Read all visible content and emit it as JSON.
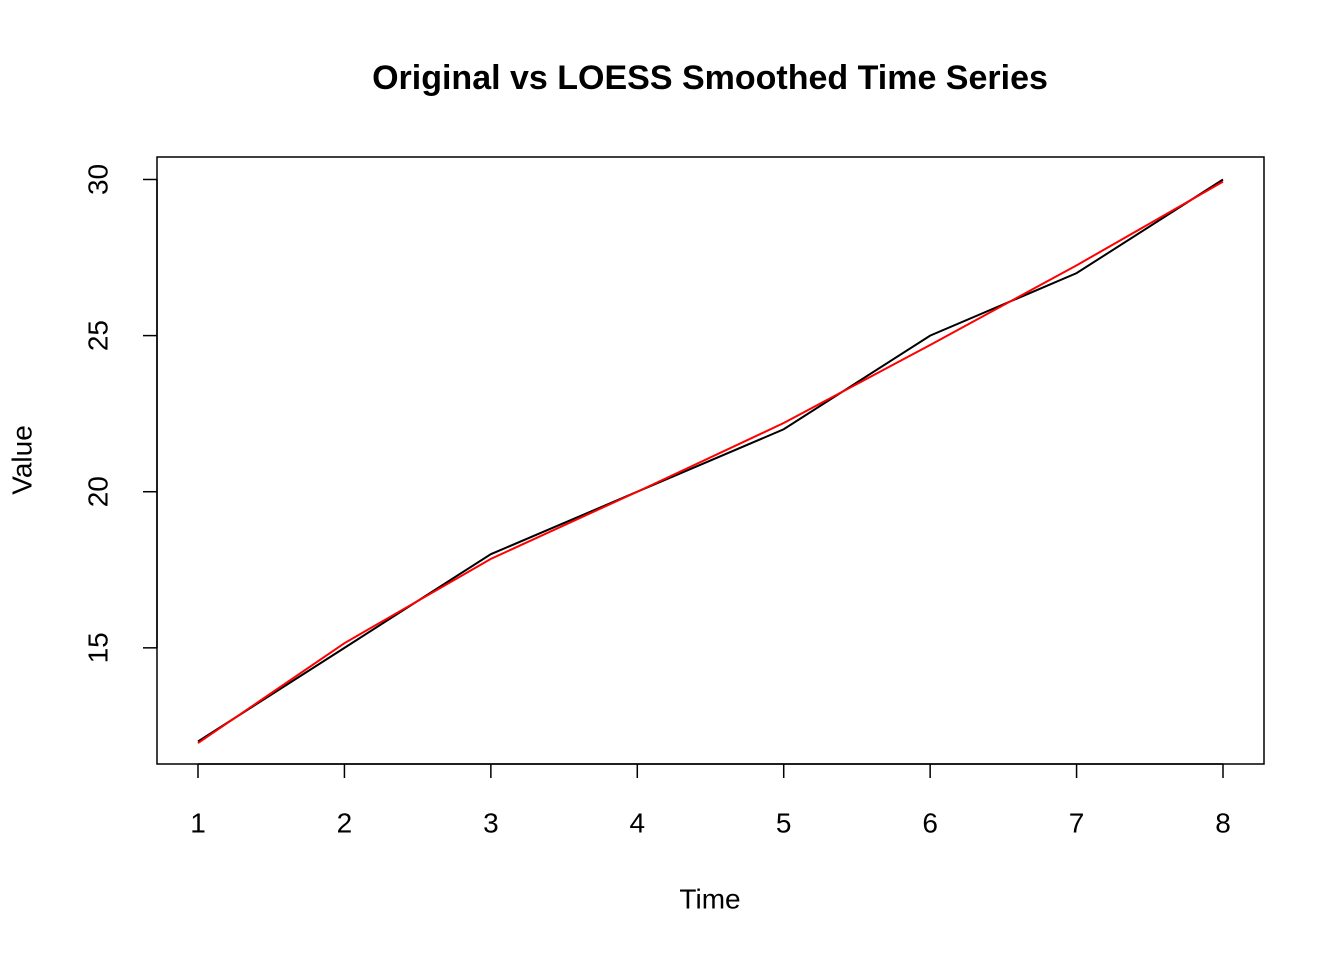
{
  "chart_data": {
    "type": "line",
    "title": "Original vs LOESS Smoothed Time Series",
    "x_label": "Time",
    "y_label": "Value",
    "x": [
      1,
      2,
      3,
      4,
      5,
      6,
      7,
      8
    ],
    "series": [
      {
        "color": "#000000",
        "values": [
          12,
          15,
          18,
          20,
          22,
          25,
          27,
          30
        ]
      },
      {
        "color": "#ff0000",
        "values": [
          11.95,
          15.15,
          17.85,
          20.0,
          22.2,
          24.7,
          27.25,
          29.93
        ]
      }
    ],
    "xlim": [
      0.72,
      8.28
    ],
    "xticks": [
      1,
      2,
      3,
      4,
      5,
      6,
      7,
      8
    ],
    "ylim": [
      11.28,
      30.72
    ],
    "yticks": [
      15,
      20,
      25,
      30
    ],
    "grid": false
  }
}
